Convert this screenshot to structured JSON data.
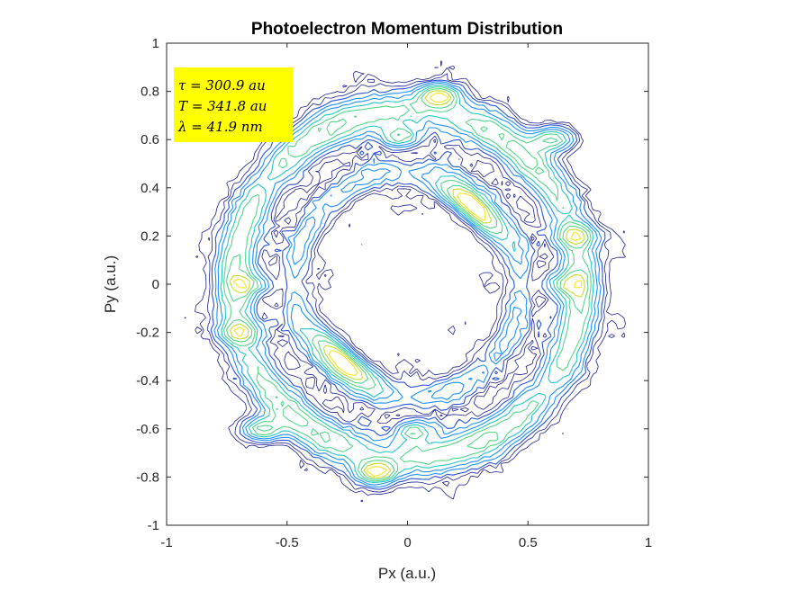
{
  "chart_data": {
    "type": "heatmap",
    "subtype": "contour",
    "title": "Photoelectron Momentum Distribution",
    "xlabel": "Px (a.u.)",
    "ylabel": "Py (a.u.)",
    "xlim": [
      -1,
      1
    ],
    "ylim": [
      -1,
      1
    ],
    "x_ticks": [
      -1,
      -0.5,
      0,
      0.5,
      1
    ],
    "x_tick_labels": [
      "-1",
      "-0.5",
      "0",
      "0.5",
      "1"
    ],
    "y_ticks": [
      -1,
      -0.8,
      -0.6,
      -0.4,
      -0.2,
      0,
      0.2,
      0.4,
      0.6,
      0.8,
      1
    ],
    "y_tick_labels": [
      "-1",
      "-0.8",
      "-0.6",
      "-0.4",
      "-0.2",
      "0",
      "0.2",
      "0.4",
      "0.6",
      "0.8",
      "1"
    ],
    "grid": false,
    "colormap": [
      "#1f1f8f",
      "#2a52d8",
      "#1e90ff",
      "#22c7c7",
      "#55d68a",
      "#c8dc2a",
      "#f5e61e"
    ],
    "structures": [
      {
        "name": "outer-ring",
        "radius": 0.72,
        "peak": 0.6
      },
      {
        "name": "inner-ring",
        "radius": 0.47,
        "peak": 0.3
      },
      {
        "name": "lobe",
        "center_angle_deg": 50,
        "radius": 0.42,
        "span_deg": 40,
        "peak": 1.0
      },
      {
        "name": "lobe",
        "center_angle_deg": 230,
        "radius": 0.42,
        "span_deg": 40,
        "peak": 1.0
      },
      {
        "name": "blob",
        "px": 0.13,
        "py": 0.78,
        "peak": 0.9
      },
      {
        "name": "blob",
        "px": -0.13,
        "py": -0.78,
        "peak": 0.9
      },
      {
        "name": "blob",
        "px": -0.03,
        "py": 0.61,
        "peak": 0.5
      },
      {
        "name": "blob",
        "px": 0.03,
        "py": -0.61,
        "peak": 0.5
      },
      {
        "name": "blob",
        "px": 0.6,
        "py": 0.6,
        "peak": 0.65
      },
      {
        "name": "blob",
        "px": -0.6,
        "py": -0.6,
        "peak": 0.65
      },
      {
        "name": "blob",
        "px": 0.7,
        "py": 0.2,
        "peak": 0.55
      },
      {
        "name": "blob",
        "px": -0.7,
        "py": -0.2,
        "peak": 0.55
      },
      {
        "name": "blob",
        "px": 0.65,
        "py": 0.0,
        "peak": 0.45
      },
      {
        "name": "blob",
        "px": -0.65,
        "py": 0.0,
        "peak": 0.45
      }
    ],
    "annotation": {
      "lines": [
        {
          "symbol": "τ",
          "text": " = 300.9 au"
        },
        {
          "symbol": "T",
          "text": " = 341.8 au"
        },
        {
          "symbol": "λ",
          "text": " = 41.9 nm"
        }
      ],
      "background": "#ffff00",
      "placement": "top-left"
    }
  }
}
